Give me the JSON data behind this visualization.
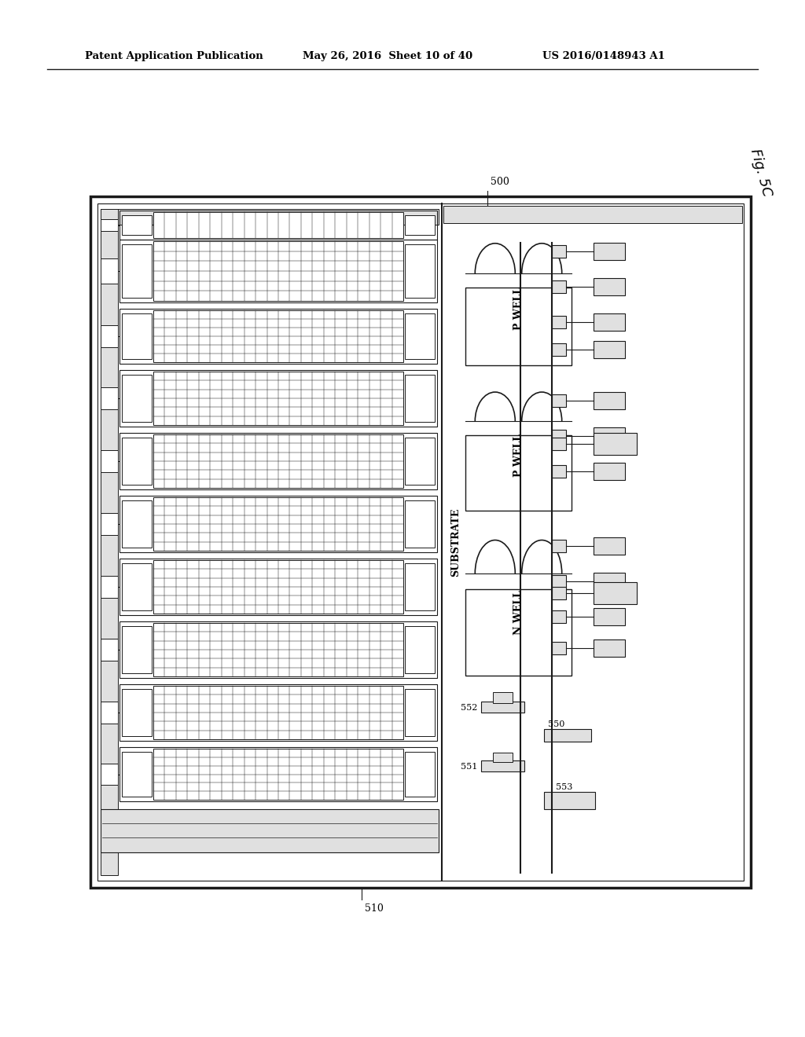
{
  "header_left": "Patent Application Publication",
  "header_mid": "May 26, 2016  Sheet 10 of 40",
  "header_right": "US 2016/0148943 A1",
  "fig_label": "Fig. 5C",
  "ref_500": "500",
  "ref_510": "510",
  "ref_550": "550",
  "ref_551": "551",
  "ref_552": "552",
  "ref_553": "553",
  "label_substrate": "SUBSTRATE",
  "label_p_well_top": "P WELL",
  "label_p_well_mid": "P WELL",
  "label_n_well": "N WELL",
  "bg_color": "#ffffff",
  "line_color": "#1a1a1a",
  "gray_fill": "#e0e0e0",
  "white_fill": "#ffffff"
}
